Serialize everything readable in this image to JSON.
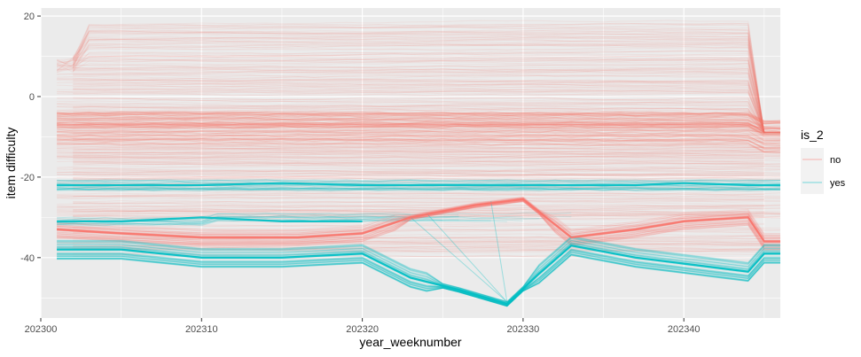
{
  "chart_data": {
    "type": "line",
    "xlabel": "year_weeknumber",
    "ylabel": "item difficulty",
    "xlim": [
      202300,
      202346
    ],
    "ylim": [
      -55,
      22
    ],
    "x_ticks": [
      202300,
      202310,
      202320,
      202330,
      202340
    ],
    "y_ticks": [
      20,
      0,
      -20,
      -40
    ],
    "x_tick_labels": [
      "202300",
      "202310",
      "202320",
      "202330",
      "202340"
    ],
    "y_tick_labels": [
      "20",
      "0",
      "-20",
      "-40"
    ],
    "grid": true,
    "legend": {
      "title": "is_2",
      "position": "right",
      "entries": [
        {
          "label": "no",
          "color": "#F8766D"
        },
        {
          "label": "yes",
          "color": "#00BFC4"
        }
      ]
    },
    "series": [
      {
        "name": "no",
        "color": "#F8766D",
        "note_range": "many overlapping items spanning roughly +18 to -42",
        "x": [
          202301,
          202305,
          202310,
          202315,
          202320,
          202323,
          202327,
          202330,
          202333,
          202337,
          202340,
          202344,
          202345,
          202346
        ],
        "values": [
          -7,
          -7,
          -7,
          -7,
          -7,
          -7,
          -7,
          -7,
          -7,
          -7,
          -7,
          -7,
          -8,
          -8
        ]
      },
      {
        "name": "no",
        "color": "#F8766D",
        "x": [
          202301,
          202305,
          202310,
          202316,
          202320,
          202323,
          202327,
          202330,
          202333,
          202337,
          202340,
          202344,
          202345,
          202346
        ],
        "values": [
          -33,
          -34,
          -35,
          -35,
          -34,
          -30,
          -27,
          -25.5,
          -35,
          -33,
          -31,
          -30,
          -36,
          -36
        ]
      },
      {
        "name": "yes",
        "color": "#00BFC4",
        "x": [
          202301,
          202305,
          202310,
          202315,
          202320,
          202323,
          202326,
          202329,
          202331,
          202333,
          202337,
          202340,
          202344,
          202345,
          202346
        ],
        "values": [
          -38,
          -38,
          -40,
          -40,
          -39,
          -45,
          -48,
          -51.5,
          -44,
          -37,
          -40,
          -41.5,
          -43.5,
          -39,
          -39
        ]
      },
      {
        "name": "yes",
        "color": "#00BFC4",
        "x": [
          202301,
          202305,
          202310,
          202315,
          202320,
          202325,
          202330,
          202333,
          202337,
          202340,
          202344,
          202346
        ],
        "values": [
          -22,
          -22,
          -22,
          -21.5,
          -22,
          -22,
          -22,
          -22,
          -22,
          -21.5,
          -22,
          -22
        ]
      },
      {
        "name": "yes",
        "color": "#00BFC4",
        "x": [
          202301,
          202305,
          202310,
          202315,
          202320
        ],
        "values": [
          -31,
          -31,
          -30,
          -31,
          -31
        ]
      }
    ]
  }
}
